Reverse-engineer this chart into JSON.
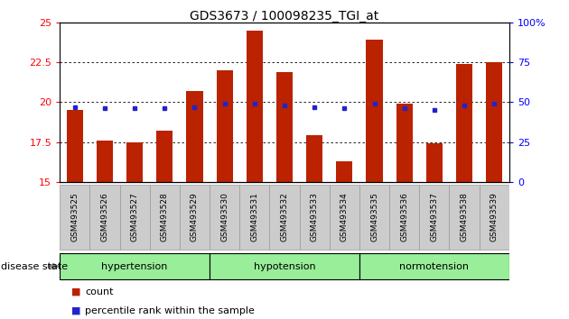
{
  "title": "GDS3673 / 100098235_TGI_at",
  "samples": [
    "GSM493525",
    "GSM493526",
    "GSM493527",
    "GSM493528",
    "GSM493529",
    "GSM493530",
    "GSM493531",
    "GSM493532",
    "GSM493533",
    "GSM493534",
    "GSM493535",
    "GSM493536",
    "GSM493537",
    "GSM493538",
    "GSM493539"
  ],
  "count_values": [
    19.5,
    17.6,
    17.5,
    18.2,
    20.7,
    22.0,
    24.5,
    21.9,
    17.9,
    16.3,
    23.9,
    19.9,
    17.4,
    22.4,
    22.5
  ],
  "percentile_values": [
    47,
    46,
    46,
    46,
    47,
    49,
    49,
    48,
    47,
    46,
    49,
    46,
    45,
    48,
    49
  ],
  "ymin": 15,
  "ymax": 25,
  "yticks": [
    15,
    17.5,
    20,
    22.5,
    25
  ],
  "y2min": 0,
  "y2max": 100,
  "y2ticks": [
    0,
    25,
    50,
    75,
    100
  ],
  "bar_color": "#bb2200",
  "dot_color": "#2222cc",
  "groups": [
    {
      "label": "hypertension",
      "start": 0,
      "end": 5
    },
    {
      "label": "hypotension",
      "start": 5,
      "end": 10
    },
    {
      "label": "normotension",
      "start": 10,
      "end": 15
    }
  ],
  "group_color": "#99ee99",
  "disease_state_label": "disease state",
  "legend_count_label": "count",
  "legend_percentile_label": "percentile rank within the sample",
  "xlabel_bg": "#cccccc",
  "fig_bg": "#ffffff"
}
